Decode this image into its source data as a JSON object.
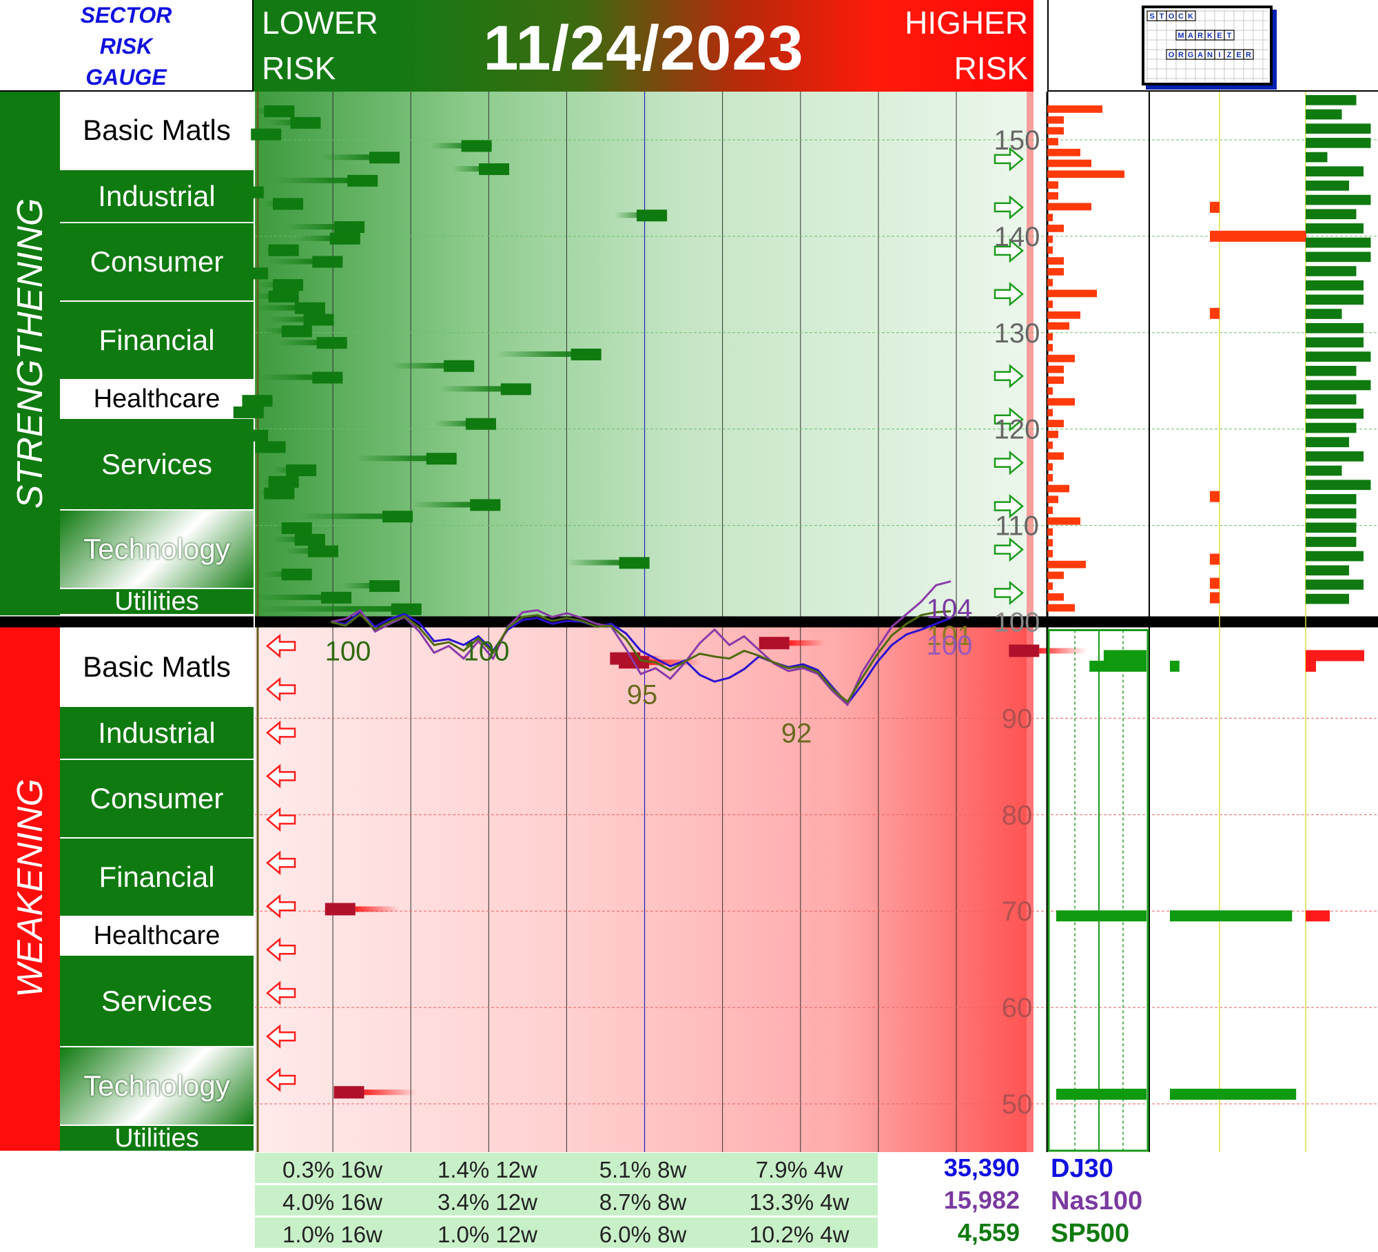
{
  "brand": {
    "line1": "SECTOR",
    "line2": "RISK",
    "line3": "GAUGE"
  },
  "header": {
    "lower_line1": "LOWER",
    "lower_line2": "RISK",
    "date": "11/24/2023",
    "higher_line1": "HIGHER",
    "higher_line2": "RISK"
  },
  "logo": {
    "row1": "STOCK",
    "row2": "MARKET",
    "row3": "ORGANIZER"
  },
  "side_labels": {
    "strengthening": "STRENGTHENING",
    "weakening": "WEAKENING"
  },
  "sectors": {
    "strengthening": [
      "Basic Matls",
      "Industrial",
      "Consumer",
      "Financial",
      "Healthcare",
      "Services",
      "Technology",
      "Utilities"
    ],
    "weakening": [
      "Basic Matls",
      "Industrial",
      "Consumer",
      "Financial",
      "Healthcare",
      "Services",
      "Technology",
      "Utilities"
    ]
  },
  "colors": {
    "green": "#0f7a0f",
    "red": "#ff1a0a",
    "dj30": "#1010e0",
    "nas100": "#7a3aa0",
    "sp500": "#0f7a0f",
    "sp_line": "#5a6a10"
  },
  "chart_data": {
    "type": "line",
    "y_axis": {
      "ylim": [
        45,
        155
      ],
      "ticks": [
        150,
        140,
        130,
        120,
        110,
        100,
        90,
        80,
        70,
        60,
        50
      ]
    },
    "x_periods": 16,
    "series": [
      {
        "name": "DJ30",
        "values": [
          100,
          99.8,
          101,
          99.5,
          100.3,
          100.8,
          99.9,
          98,
          98.2,
          97.6,
          98.5,
          97,
          99.2,
          100.2,
          100.4,
          99.8,
          100.1,
          100,
          99.5,
          99.8,
          98.8,
          97,
          96.2,
          95.4,
          96,
          94.5,
          93.8,
          94.2,
          95.1,
          96.4,
          95.8,
          95.3,
          95.6,
          95,
          93.2,
          91.5,
          93.5,
          95.8,
          97.6,
          98.7,
          99.2,
          99.8,
          100.4
        ]
      },
      {
        "name": "Nas100",
        "values": [
          100,
          100.3,
          101.2,
          99,
          99.8,
          100.5,
          99,
          96.8,
          97.5,
          96.2,
          98,
          96.2,
          99.5,
          101,
          101.2,
          100.5,
          100.9,
          100.4,
          99.8,
          99.5,
          97.2,
          94.6,
          95.2,
          94.1,
          95.8,
          97.8,
          99.2,
          97.6,
          98.5,
          97.1,
          95.7,
          94.9,
          95.2,
          94.6,
          92.8,
          91.4,
          94.8,
          97.2,
          99.5,
          100.8,
          102.1,
          103.8,
          104.2
        ]
      },
      {
        "name": "SP500",
        "values": [
          100,
          99.6,
          100.8,
          99.2,
          100,
          100.6,
          99.4,
          97.6,
          97.9,
          97,
          98.3,
          96.8,
          99.4,
          100.5,
          100.7,
          100.1,
          100.4,
          100.1,
          99.5,
          99.6,
          98.2,
          96,
          95.8,
          95,
          95.9,
          96.7,
          96.4,
          96.2,
          97,
          96.5,
          95.8,
          95.2,
          95.4,
          94.8,
          93,
          91.7,
          94.2,
          96.6,
          98.6,
          99.8,
          100.7,
          101,
          101.1
        ]
      }
    ],
    "annotations": [
      "100",
      "100",
      "95",
      "92",
      "104",
      "101",
      "100"
    ],
    "stats": [
      {
        "index": "DJ30",
        "value": "35,390",
        "p16w": "0.3% 16w",
        "p12w": "1.4% 12w",
        "p8w": "5.1% 8w",
        "p4w": "7.9% 4w"
      },
      {
        "index": "Nas100",
        "value": "15,982",
        "p16w": "4.0% 16w",
        "p12w": "3.4% 12w",
        "p8w": "8.7% 8w",
        "p4w": "13.3% 4w"
      },
      {
        "index": "SP500",
        "value": "4,559",
        "p16w": "1.0% 16w",
        "p12w": "1.0% 12w",
        "p8w": "6.0% 8w",
        "p4w": "10.2% 4w"
      }
    ],
    "strengthening_bars": [
      {
        "start": 0.0,
        "end": 0.9
      },
      {
        "start": 0.3,
        "end": 1.5
      },
      {
        "start": 0.1,
        "end": 0.6
      },
      {
        "start": 4.0,
        "end": 5.4
      },
      {
        "start": 1.5,
        "end": 3.3
      },
      {
        "start": 4.5,
        "end": 5.8
      },
      {
        "start": 0.4,
        "end": 2.8
      },
      {
        "start": 0.0,
        "end": 0.2
      },
      {
        "start": 0.2,
        "end": 1.1
      },
      {
        "start": 8.2,
        "end": 9.4
      },
      {
        "start": 0.7,
        "end": 2.5
      },
      {
        "start": 0.9,
        "end": 2.4
      },
      {
        "start": 0.2,
        "end": 1.0
      },
      {
        "start": 0.3,
        "end": 2.0
      },
      {
        "start": 0.0,
        "end": 0.3
      },
      {
        "start": 0.1,
        "end": 1.1
      },
      {
        "start": 0.0,
        "end": 1.0
      },
      {
        "start": 0.0,
        "end": 1.6
      },
      {
        "start": 0.3,
        "end": 1.8
      },
      {
        "start": 0.2,
        "end": 1.3
      },
      {
        "start": 0.5,
        "end": 2.1
      },
      {
        "start": 5.5,
        "end": 7.9
      },
      {
        "start": 3.1,
        "end": 5.0
      },
      {
        "start": 0.1,
        "end": 2.0
      },
      {
        "start": 4.2,
        "end": 6.3
      },
      {
        "start": 0.0,
        "end": 0.4
      },
      {
        "start": 0.0,
        "end": 0.2
      },
      {
        "start": 4.1,
        "end": 5.5
      },
      {
        "start": 0.0,
        "end": 0.3
      },
      {
        "start": 0.0,
        "end": 0.7
      },
      {
        "start": 2.3,
        "end": 4.6
      },
      {
        "start": 0.4,
        "end": 1.4
      },
      {
        "start": 0.2,
        "end": 1.0
      },
      {
        "start": 0.1,
        "end": 0.9
      },
      {
        "start": 3.6,
        "end": 5.6
      },
      {
        "start": 1.0,
        "end": 3.6
      },
      {
        "start": 0.5,
        "end": 1.3
      },
      {
        "start": 0.4,
        "end": 1.6
      },
      {
        "start": 0.7,
        "end": 1.9
      },
      {
        "start": 7.1,
        "end": 9.0
      },
      {
        "start": 0.2,
        "end": 1.3
      },
      {
        "start": 2.0,
        "end": 3.3
      },
      {
        "start": 0.0,
        "end": 2.2
      },
      {
        "start": 0.0,
        "end": 3.8
      }
    ],
    "weakening_bars": [
      {
        "start": 12.3,
        "end": 11.5
      },
      {
        "start": 17.2,
        "end": 18.3
      },
      {
        "start": 8.6,
        "end": 8.1
      },
      {
        "start": 9.5,
        "end": 8.3
      },
      {
        "start": 1.6,
        "end": 2.6
      },
      {
        "start": 1.8,
        "end": 3.0
      }
    ],
    "right_panel_1_red": [
      1,
      0.3,
      0.3,
      0.2,
      0.6,
      0.8,
      1.4,
      0.2,
      0.2,
      0.8,
      0.1,
      0.3,
      0.1,
      0.1,
      0.3,
      0.3,
      0.1,
      0.9,
      0.1,
      0.6,
      0.4,
      0.1,
      0.1,
      0.5,
      0.3,
      0.3,
      0.1,
      0.5,
      0.1,
      0.3,
      0.2,
      0.1,
      0.3,
      0.1,
      0.1,
      0.4,
      0.2,
      0.1,
      0.6,
      0.1,
      0.1,
      0.1,
      0.7,
      0.3,
      0.1,
      0.3,
      0.5
    ],
    "right_panel_2_red": [
      0.0,
      1.0,
      0.0,
      0.1,
      0.1,
      0.1,
      0.1
    ],
    "right_panel_3_green": [
      0.7,
      0.5,
      0.9,
      0.9,
      0.3,
      0.8,
      0.6,
      0.9,
      0.7,
      0.8,
      0.9,
      0.9,
      0.7,
      0.8,
      0.8,
      0.5,
      0.8,
      0.8,
      0.9,
      0.7,
      0.9,
      0.7,
      0.8,
      0.7,
      0.6,
      0.8,
      0.5,
      0.9,
      0.7,
      0.7,
      0.7,
      0.7,
      0.8,
      0.6,
      0.8,
      0.6
    ],
    "right_panel_weak": [
      {
        "panel": 1,
        "type": "green",
        "y": 96.5,
        "w": 0.45
      },
      {
        "panel": 1,
        "type": "green",
        "y": 95.4,
        "w": 0.6
      },
      {
        "panel": 1,
        "type": "green",
        "y": 69.5,
        "w": 0.95
      },
      {
        "panel": 1,
        "type": "green",
        "y": 51,
        "w": 0.95
      },
      {
        "panel": 2,
        "type": "green",
        "y": 95.4,
        "w": 0.07
      },
      {
        "panel": 2,
        "type": "green",
        "y": 69.5,
        "w": 0.9
      },
      {
        "panel": 2,
        "type": "green",
        "y": 51,
        "w": 0.93
      },
      {
        "panel": 3,
        "type": "red",
        "y": 96.5,
        "w": 0.85
      },
      {
        "panel": 3,
        "type": "red",
        "y": 95.4,
        "w": 0.15
      },
      {
        "panel": 3,
        "type": "red",
        "y": 69.5,
        "w": 0.35
      }
    ]
  }
}
